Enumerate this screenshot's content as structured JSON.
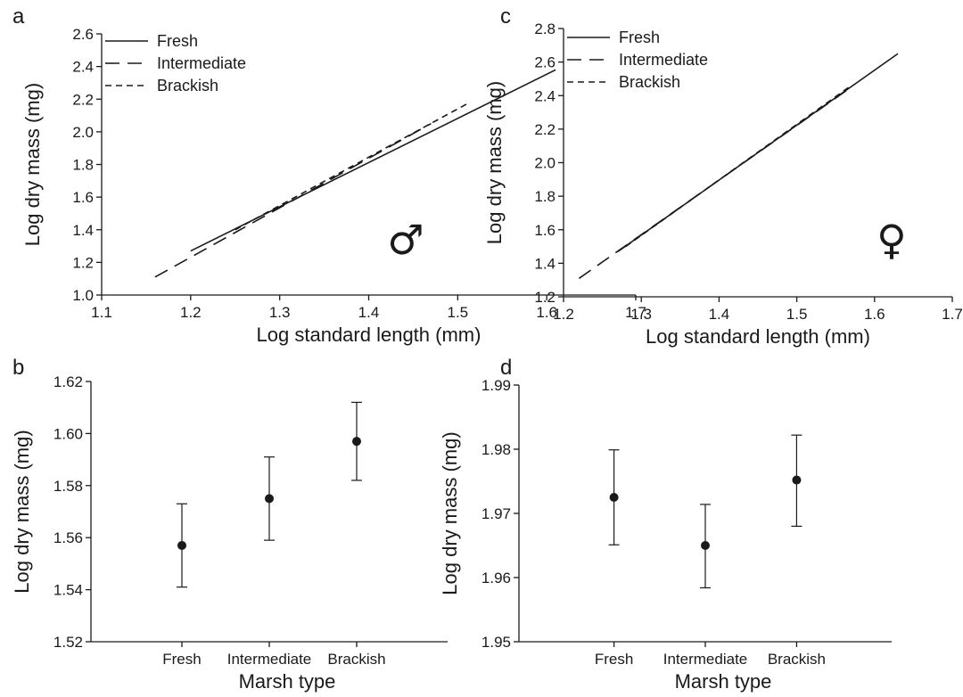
{
  "chart_data": [
    {
      "panel": "a",
      "type": "line",
      "xlabel": "Log standard length (mm)",
      "ylabel": "Log dry mass (mg)",
      "xlim": [
        1.1,
        1.7
      ],
      "ylim": [
        1.0,
        2.6
      ],
      "xticks": [
        "1.1",
        "1.2",
        "1.3",
        "1.4",
        "1.5",
        "1.6",
        "1.7"
      ],
      "yticks": [
        "1.0",
        "1.2",
        "1.4",
        "1.6",
        "1.8",
        "2.0",
        "2.2",
        "2.4",
        "2.6"
      ],
      "legend": "top-left",
      "symbol": "♂",
      "series": [
        {
          "name": "Fresh",
          "dash": "solid",
          "x": [
            1.2,
            1.61
          ],
          "y": [
            1.27,
            2.38
          ]
        },
        {
          "name": "Intermediate",
          "dash": "long-dash",
          "x": [
            1.16,
            1.47
          ],
          "y": [
            1.11,
            2.05
          ]
        },
        {
          "name": "Brackish",
          "dash": "short-dash",
          "x": [
            1.25,
            1.51
          ],
          "y": [
            1.4,
            2.17
          ]
        }
      ]
    },
    {
      "panel": "c",
      "type": "line",
      "xlabel": "Log standard length (mm)",
      "ylabel": "Log dry mass (mg)",
      "xlim": [
        1.2,
        1.7
      ],
      "ylim": [
        1.2,
        2.8
      ],
      "xticks": [
        "1.2",
        "1.3",
        "1.4",
        "1.5",
        "1.6",
        "1.7"
      ],
      "yticks": [
        "1.2",
        "1.4",
        "1.6",
        "1.8",
        "2.0",
        "2.2",
        "2.4",
        "2.6",
        "2.8"
      ],
      "legend": "top-left",
      "symbol": "♀",
      "series": [
        {
          "name": "Fresh",
          "dash": "solid",
          "x": [
            1.27,
            1.63
          ],
          "y": [
            1.47,
            2.65
          ]
        },
        {
          "name": "Intermediate",
          "dash": "long-dash",
          "x": [
            1.22,
            1.57
          ],
          "y": [
            1.31,
            2.45
          ]
        },
        {
          "name": "Brackish",
          "dash": "short-dash",
          "x": [
            1.28,
            1.57
          ],
          "y": [
            1.5,
            2.46
          ]
        }
      ]
    },
    {
      "panel": "b",
      "type": "scatter",
      "error_bars": true,
      "xlabel": "Marsh type",
      "ylabel": "Log dry mass (mg)",
      "ylim": [
        1.52,
        1.62
      ],
      "categories": [
        "Fresh",
        "Intermediate",
        "Brackish"
      ],
      "yticks": [
        "1.52",
        "1.54",
        "1.56",
        "1.58",
        "1.60",
        "1.62"
      ],
      "values": [
        1.557,
        1.575,
        1.597
      ],
      "err_low": [
        1.541,
        1.559,
        1.582
      ],
      "err_high": [
        1.573,
        1.591,
        1.612
      ]
    },
    {
      "panel": "d",
      "type": "scatter",
      "error_bars": true,
      "xlabel": "Marsh type",
      "ylabel": "Log dry mass (mg)",
      "ylim": [
        1.95,
        1.99
      ],
      "categories": [
        "Fresh",
        "Intermediate",
        "Brackish"
      ],
      "yticks": [
        "1.95",
        "1.96",
        "1.97",
        "1.98",
        "1.99"
      ],
      "values": [
        1.9725,
        1.965,
        1.9752
      ],
      "err_low": [
        1.9651,
        1.9584,
        1.968
      ],
      "err_high": [
        1.9799,
        1.9714,
        1.9822
      ]
    }
  ]
}
